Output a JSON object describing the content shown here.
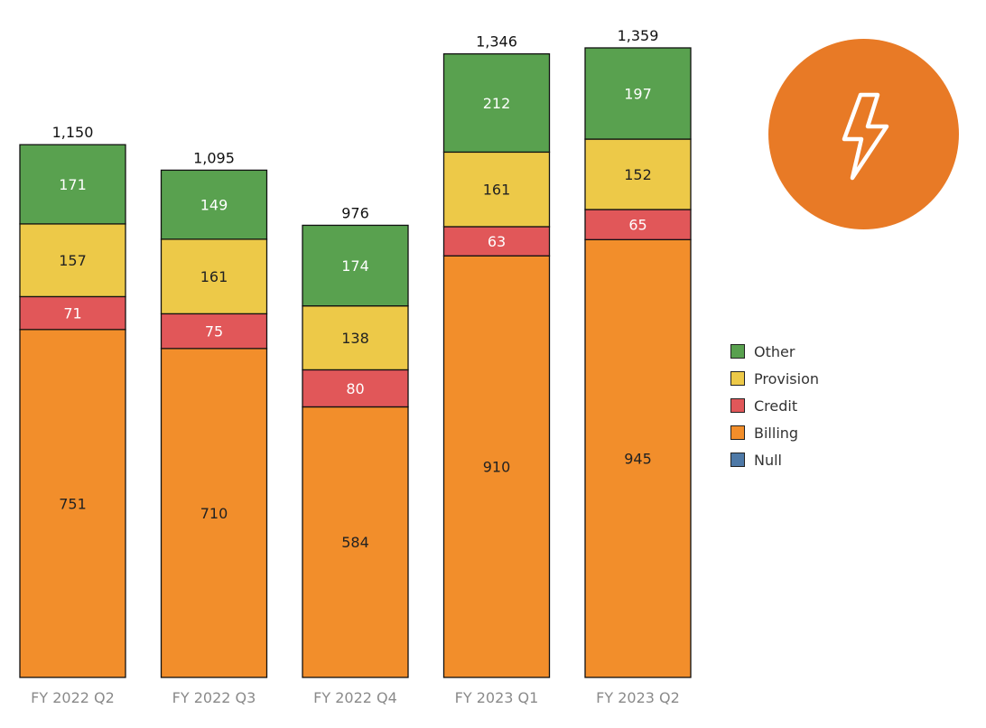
{
  "chart_data": {
    "type": "bar",
    "stacked": true,
    "categories": [
      "FY 2022 Q2",
      "FY 2022 Q3",
      "FY 2022 Q4",
      "FY 2023 Q1",
      "FY 2023 Q2"
    ],
    "series": [
      {
        "name": "Billing",
        "color": "#F28E2B",
        "text_color": "#222222",
        "values": [
          751,
          710,
          584,
          910,
          945
        ]
      },
      {
        "name": "Credit",
        "color": "#E15759",
        "text_color": "#ffffff",
        "values": [
          71,
          75,
          80,
          63,
          65
        ]
      },
      {
        "name": "Provision",
        "color": "#EDC948",
        "text_color": "#222222",
        "values": [
          157,
          161,
          138,
          161,
          152
        ]
      },
      {
        "name": "Other",
        "color": "#59A14F",
        "text_color": "#ffffff",
        "values": [
          171,
          149,
          174,
          212,
          197
        ]
      }
    ],
    "totals": [
      "1,150",
      "1,095",
      "976",
      "1,346",
      "1,359"
    ],
    "ylim": [
      0,
      1359
    ],
    "grid": false,
    "legend_position": "right"
  },
  "legend": {
    "items": [
      {
        "label": "Other",
        "color": "#59A14F"
      },
      {
        "label": "Provision",
        "color": "#EDC948"
      },
      {
        "label": "Credit",
        "color": "#E15759"
      },
      {
        "label": "Billing",
        "color": "#F28E2B"
      },
      {
        "label": "Null",
        "color": "#4E79A7"
      }
    ]
  },
  "badge": {
    "color": "#E87A26",
    "icon": "lightning-bolt-icon"
  }
}
